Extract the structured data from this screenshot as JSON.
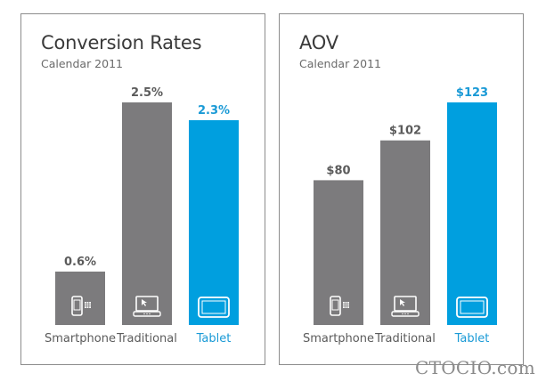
{
  "chart_data": [
    {
      "type": "bar",
      "title": "Conversion Rates",
      "subtitle": "Calendar 2011",
      "categories": [
        "Smartphone",
        "Traditional",
        "Tablet"
      ],
      "values": [
        0.6,
        2.5,
        2.3
      ],
      "data_labels": [
        "0.6%",
        "2.5%",
        "2.3%"
      ],
      "icons": [
        "smartphone-icon",
        "laptop-icon",
        "tablet-icon"
      ],
      "colors": [
        "#7c7b7d",
        "#7c7b7d",
        "#009fdf"
      ],
      "label_colors": [
        "#5b5b5b",
        "#5b5b5b",
        "#1a9ad6"
      ],
      "ylim": [
        0,
        2.5
      ],
      "xlabel": "",
      "ylabel": "",
      "grid": false
    },
    {
      "type": "bar",
      "title": "AOV",
      "subtitle": "Calendar 2011",
      "categories": [
        "Smartphone",
        "Traditional",
        "Tablet"
      ],
      "values": [
        80,
        102,
        123
      ],
      "data_labels": [
        "$80",
        "$102",
        "$123"
      ],
      "icons": [
        "smartphone-icon",
        "laptop-icon",
        "tablet-icon"
      ],
      "colors": [
        "#7c7b7d",
        "#7c7b7d",
        "#009fdf"
      ],
      "label_colors": [
        "#5b5b5b",
        "#5b5b5b",
        "#1a9ad6"
      ],
      "ylim": [
        0,
        123
      ],
      "xlabel": "",
      "ylabel": "",
      "grid": false
    }
  ],
  "watermark": "CTOCIO.com"
}
